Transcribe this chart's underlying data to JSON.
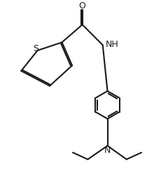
{
  "background": "#ffffff",
  "line_color": "#1a1a1a",
  "line_width": 1.5,
  "font_size": 9,
  "fig_width": 2.1,
  "fig_height": 2.54,
  "dpi": 100,
  "xlim": [
    0,
    10.5
  ],
  "ylim": [
    0,
    12.7
  ],
  "S_label": "S",
  "O_label": "O",
  "NH_label": "NH",
  "N_label": "N"
}
